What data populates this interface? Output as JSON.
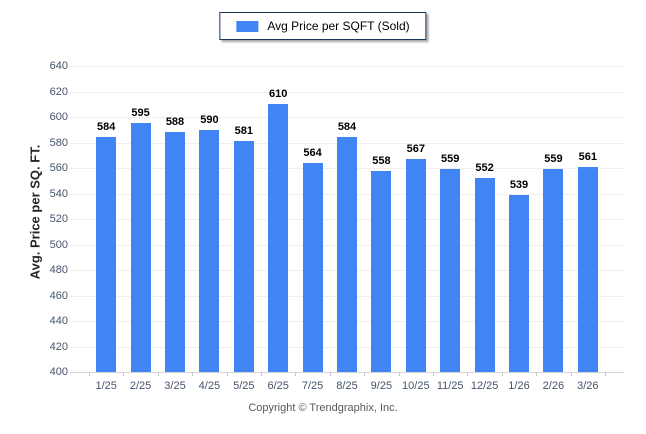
{
  "legend": {
    "label": "Avg Price per SQFT (Sold)"
  },
  "footer": {
    "copyright": "Copyright © Trendgraphix, Inc."
  },
  "colors": {
    "bar": "#4184F3",
    "gridline": "#efefef",
    "axis_line": "#d6d6d6",
    "tick_label": "#44546a",
    "value_label": "#000000",
    "legend_border": "#16365c"
  },
  "chart_data": {
    "type": "bar",
    "title": "Avg Price per SQFT (Sold)",
    "categories": [
      "1/25",
      "2/25",
      "3/25",
      "4/25",
      "5/25",
      "6/25",
      "7/25",
      "8/25",
      "9/25",
      "10/25",
      "11/25",
      "12/25",
      "1/26",
      "2/26",
      "3/26"
    ],
    "values": [
      584,
      595,
      588,
      590,
      581,
      610,
      564,
      584,
      558,
      567,
      559,
      552,
      539,
      559,
      561
    ],
    "xlabel": "",
    "ylabel": "Avg. Price per SQ. FT.",
    "ylim": [
      400,
      640
    ],
    "ytick_step": 20,
    "grid": true,
    "legend_position": "top",
    "value_labels": true
  }
}
